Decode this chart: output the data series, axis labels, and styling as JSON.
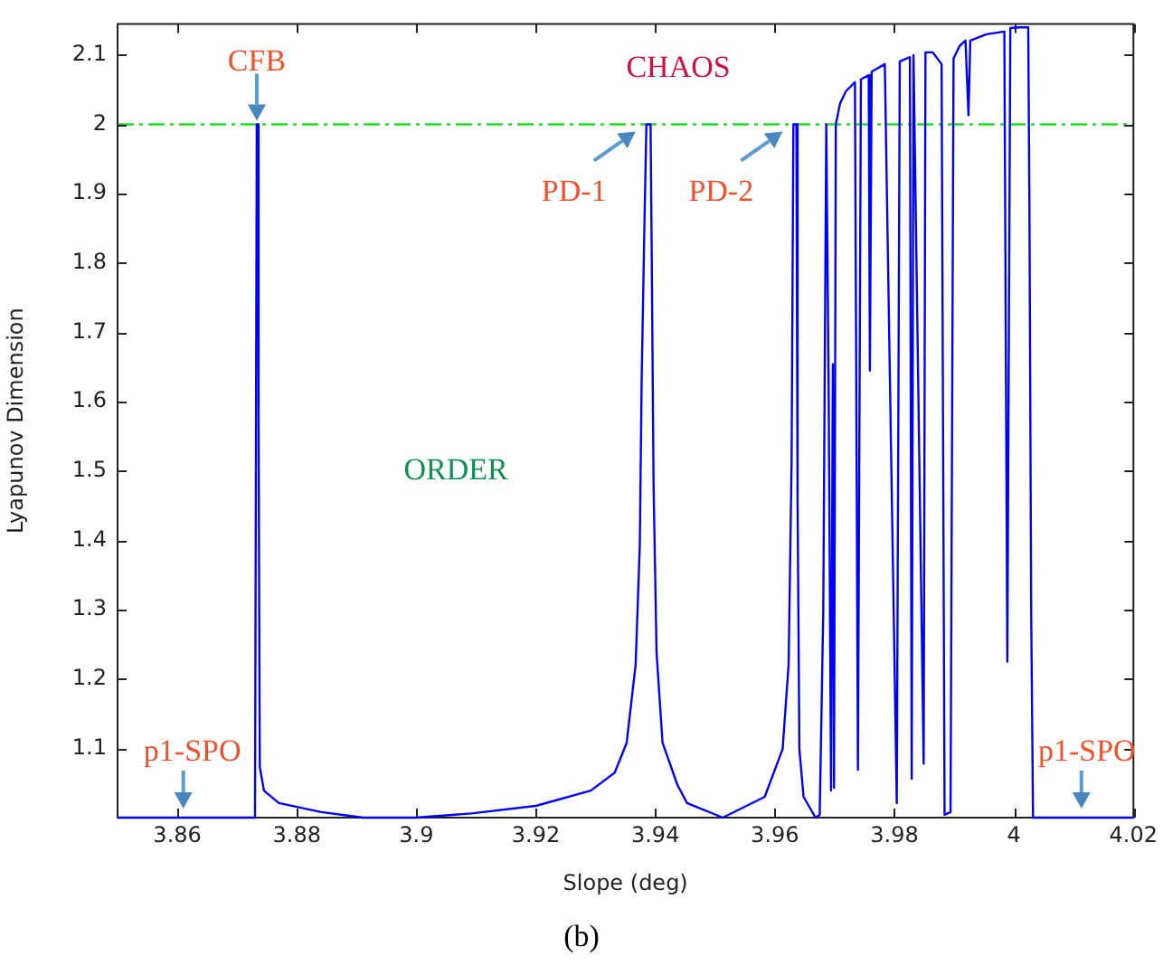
{
  "chart_data": {
    "type": "line",
    "xlabel": "Slope (deg)",
    "ylabel": "Lyapunov Dimension",
    "xlim": [
      3.85,
      4.02
    ],
    "ylim": [
      1,
      2.145
    ],
    "xticks": [
      3.86,
      3.88,
      3.9,
      3.92,
      3.94,
      3.96,
      3.98,
      4,
      4.02
    ],
    "yticks": [
      1.1,
      1.2,
      1.3,
      1.4,
      1.5,
      1.6,
      1.7,
      1.8,
      1.9,
      2,
      2.1
    ],
    "legend": false,
    "marker": "none",
    "line_style": "solid",
    "ref_lines": [
      {
        "axis": "y",
        "value": 2,
        "color": "#22dd22",
        "line_style": "dashed"
      }
    ],
    "annotations": [
      {
        "text": "CFB",
        "x": 3.8733,
        "y": 2
      },
      "CHAOS",
      {
        "text": "PD-1",
        "x": 3.9385,
        "y": 2
      },
      {
        "text": "PD-2",
        "x": 3.9631,
        "y": 2
      },
      "ORDER",
      {
        "text": "p1-SPO",
        "x": 3.861,
        "y": 1
      },
      {
        "text": "p1-SPO",
        "x": 4.0113,
        "y": 1
      },
      "(b)"
    ],
    "series": [
      {
        "color": "#0000ff",
        "x": [
          3.85,
          3.873,
          3.8733,
          3.8735,
          3.8736,
          3.8738,
          3.8745,
          3.877,
          3.8841,
          3.8911,
          3.8999,
          3.9092,
          3.92,
          3.9292,
          3.9332,
          3.9352,
          3.9367,
          3.9374,
          3.9377,
          3.9382,
          3.9385,
          3.9392,
          3.9394,
          3.9397,
          3.9402,
          3.9412,
          3.9437,
          3.9453,
          3.9513,
          3.9583,
          3.9613,
          3.9623,
          3.9628,
          3.9631,
          3.9636,
          3.9638,
          3.9641,
          3.9648,
          3.9668,
          3.9675,
          3.9681,
          3.9686,
          3.969,
          3.9694,
          3.9697,
          3.9699,
          3.9702,
          3.9709,
          3.9719,
          3.9734,
          3.9739,
          3.9744,
          3.9757,
          3.9759,
          3.9762,
          3.9784,
          3.9804,
          3.9809,
          3.9826,
          3.9829,
          3.9832,
          3.9849,
          3.9852,
          3.9864,
          3.9879,
          3.9884,
          3.9894,
          3.9899,
          3.9909,
          3.9919,
          3.9924,
          3.9927,
          3.9954,
          3.9984,
          3.9989,
          3.9994,
          4.0009,
          4.0019,
          4.0024,
          4.0026,
          4.0029,
          4.0032,
          4.02
        ],
        "values": [
          1,
          1,
          2,
          2,
          1.571,
          1.073,
          1.039,
          1.021,
          1.008,
          1,
          1,
          1.006,
          1.017,
          1.039,
          1.065,
          1.108,
          1.221,
          1.394,
          1.628,
          1.87,
          2,
          2,
          1.801,
          1.48,
          1.238,
          1.108,
          1.047,
          1.021,
          1,
          1.03,
          1.099,
          1.221,
          1.515,
          2,
          2,
          1.455,
          1.099,
          1.03,
          1,
          1.004,
          1.299,
          2,
          1.619,
          1.039,
          1.654,
          1.043,
          2,
          2.03,
          2.048,
          2.061,
          1.069,
          2.065,
          2.071,
          1.645,
          2.076,
          2.087,
          1.021,
          2.091,
          2.097,
          1.056,
          2.1,
          1.078,
          2.104,
          2.104,
          2.087,
          1.004,
          1.008,
          2.095,
          2.113,
          2.121,
          2.013,
          2.121,
          2.13,
          2.134,
          1.225,
          2.139,
          2.14,
          2.14,
          2.14,
          1.879,
          1.29,
          1,
          1
        ]
      }
    ]
  }
}
